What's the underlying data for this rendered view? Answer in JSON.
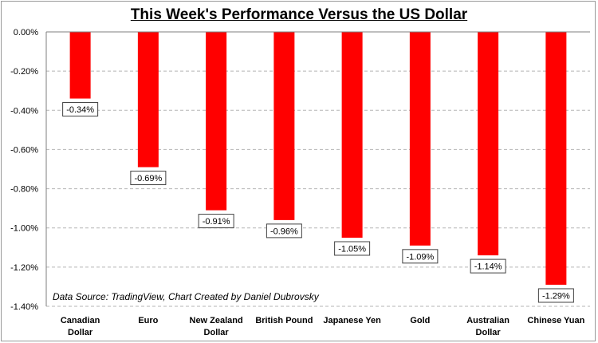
{
  "chart_data": {
    "type": "bar",
    "title": "This Week's Performance Versus the US Dollar",
    "categories": [
      [
        "Canadian",
        "Dollar"
      ],
      [
        "Euro"
      ],
      [
        "New Zealand",
        "Dollar"
      ],
      [
        "British Pound"
      ],
      [
        "Japanese Yen"
      ],
      [
        "Gold"
      ],
      [
        "Australian",
        "Dollar"
      ],
      [
        "Chinese Yuan"
      ]
    ],
    "values": [
      -0.34,
      -0.69,
      -0.91,
      -0.96,
      -1.05,
      -1.09,
      -1.14,
      -1.29
    ],
    "data_labels": [
      "-0.34%",
      "-0.69%",
      "-0.91%",
      "-0.96%",
      "-1.05%",
      "-1.09%",
      "-1.14%",
      "-1.29%"
    ],
    "yticks": [
      0,
      -0.2,
      -0.4,
      -0.6,
      -0.8,
      -1.0,
      -1.2,
      -1.4
    ],
    "ytick_labels": [
      "0.00%",
      "-0.20%",
      "-0.40%",
      "-0.60%",
      "-0.80%",
      "-1.00%",
      "-1.20%",
      "-1.40%"
    ],
    "ylim": [
      -1.4,
      0
    ],
    "grid": true,
    "bar_color": "#ff0000",
    "annotation": "Data Source: TradingView, Chart Created by Daniel Dubrovsky"
  }
}
